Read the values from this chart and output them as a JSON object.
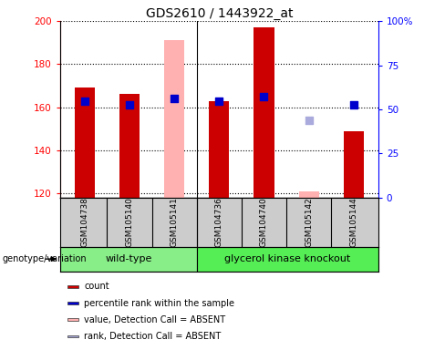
{
  "title": "GDS2610 / 1443922_at",
  "samples": [
    "GSM104738",
    "GSM105140",
    "GSM105141",
    "GSM104736",
    "GSM104740",
    "GSM105142",
    "GSM105144"
  ],
  "ylim_left": [
    118,
    200
  ],
  "ylim_right": [
    0,
    100
  ],
  "yticks_left": [
    120,
    140,
    160,
    180,
    200
  ],
  "yticks_right": [
    0,
    25,
    50,
    75,
    100
  ],
  "ytick_labels_right": [
    "0",
    "25",
    "50",
    "75",
    "100%"
  ],
  "bar_values": [
    169,
    166,
    null,
    163,
    197,
    null,
    149
  ],
  "bar_color": "#cc0000",
  "absent_bar_values": [
    null,
    null,
    191,
    null,
    null,
    121,
    null
  ],
  "absent_bar_color": "#ffb0b0",
  "blue_square_values": [
    163,
    161,
    164,
    163,
    165,
    null,
    161
  ],
  "blue_square_color": "#0000cc",
  "absent_rank_values": [
    null,
    null,
    null,
    null,
    null,
    154,
    null
  ],
  "absent_rank_color": "#aaaadd",
  "group1_label": "wild-type",
  "group2_label": "glycerol kinase knockout",
  "group1_color": "#88ee88",
  "group2_color": "#55ee55",
  "genotype_label": "genotype/variation",
  "legend_items": [
    {
      "label": "count",
      "color": "#cc0000"
    },
    {
      "label": "percentile rank within the sample",
      "color": "#0000cc"
    },
    {
      "label": "value, Detection Call = ABSENT",
      "color": "#ffb0b0"
    },
    {
      "label": "rank, Detection Call = ABSENT",
      "color": "#aaaadd"
    }
  ],
  "bar_width": 0.45,
  "blue_square_size": 40,
  "absent_rank_size": 30,
  "sample_label_color": "#cccccc",
  "title_fontsize": 10,
  "tick_fontsize": 7.5,
  "sample_fontsize": 6.5,
  "group_fontsize": 8,
  "legend_fontsize": 7,
  "genotype_fontsize": 7
}
